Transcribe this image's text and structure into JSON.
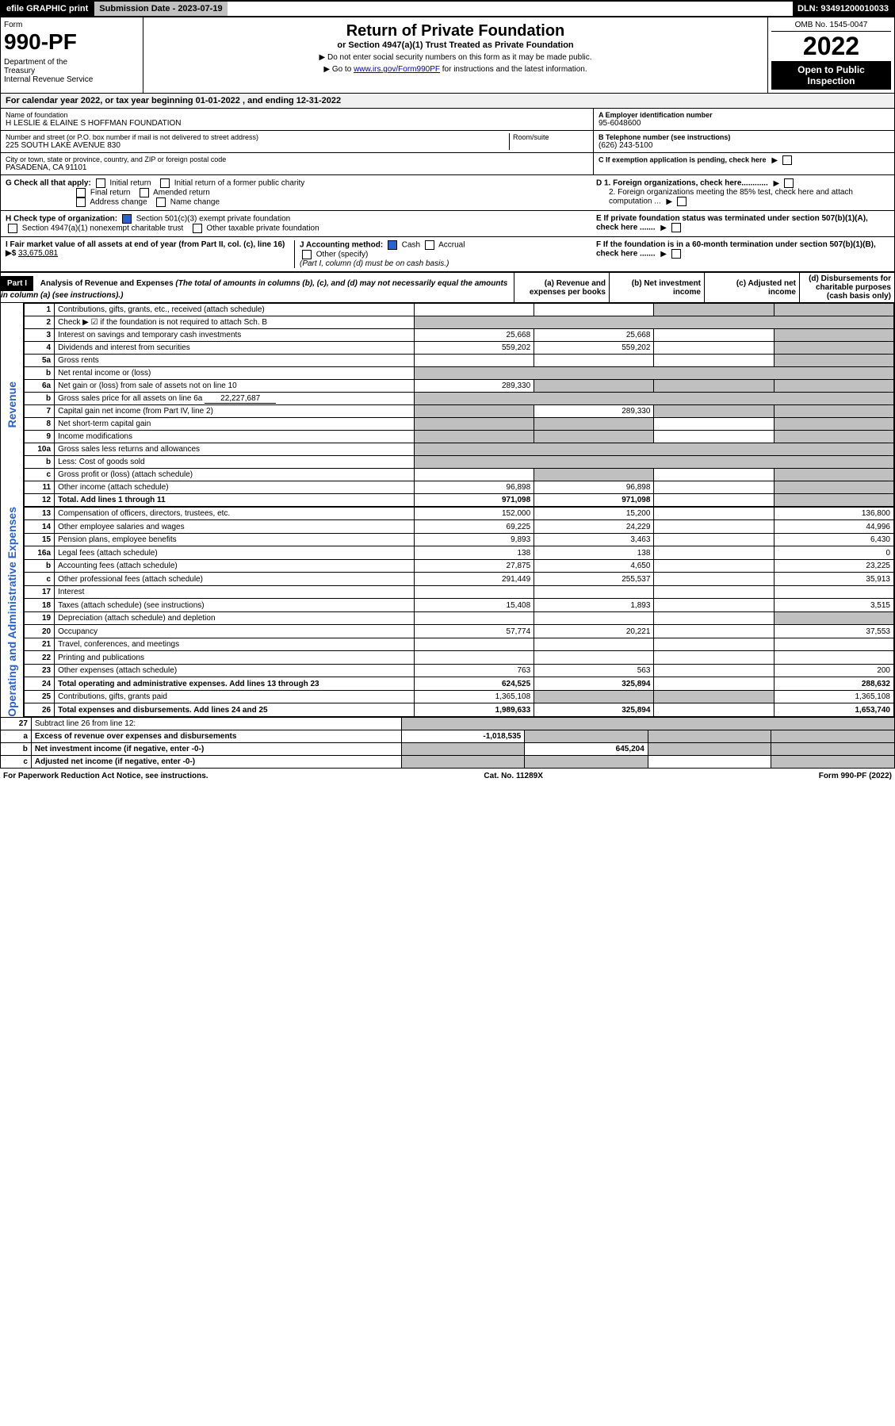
{
  "top_bar": {
    "efile": "efile GRAPHIC print",
    "submission_date_label": "Submission Date - 2023-07-19",
    "dln": "DLN: 93491200010033"
  },
  "header": {
    "form_label": "Form",
    "form_number": "990-PF",
    "dept": "Department of the Treasury\nInternal Revenue Service",
    "title": "Return of Private Foundation",
    "subtitle": "or Section 4947(a)(1) Trust Treated as Private Foundation",
    "instr1": "▶ Do not enter social security numbers on this form as it may be made public.",
    "instr2_pre": "▶ Go to ",
    "instr2_link": "www.irs.gov/Form990PF",
    "instr2_post": " for instructions and the latest information.",
    "omb": "OMB No. 1545-0047",
    "year": "2022",
    "open_public": "Open to Public Inspection"
  },
  "cal_year": "For calendar year 2022, or tax year beginning 01-01-2022                    , and ending 12-31-2022",
  "entity": {
    "name_lbl": "Name of foundation",
    "name_val": "H LESLIE & ELAINE S HOFFMAN FOUNDATION",
    "addr_lbl": "Number and street (or P.O. box number if mail is not delivered to street address)",
    "addr_val": "225 SOUTH LAKE AVENUE 830",
    "room_lbl": "Room/suite",
    "city_lbl": "City or town, state or province, country, and ZIP or foreign postal code",
    "city_val": "PASADENA, CA  91101",
    "a_lbl": "A Employer identification number",
    "a_val": "95-6048600",
    "b_lbl": "B Telephone number (see instructions)",
    "b_val": "(626) 243-5100",
    "c_lbl": "C If exemption application is pending, check here"
  },
  "checks": {
    "g_lbl": "G Check all that apply:",
    "g_items": [
      "Initial return",
      "Initial return of a former public charity",
      "Final return",
      "Amended return",
      "Address change",
      "Name change"
    ],
    "h_lbl": "H Check type of organization:",
    "h_501c3": "Section 501(c)(3) exempt private foundation",
    "h_4947": "Section 4947(a)(1) nonexempt charitable trust",
    "h_other": "Other taxable private foundation",
    "i_lbl": "I Fair market value of all assets at end of year (from Part II, col. (c), line 16) ▶$",
    "i_val": "33,675,081",
    "j_lbl": "J Accounting method:",
    "j_cash": "Cash",
    "j_accrual": "Accrual",
    "j_other": "Other (specify)",
    "j_note": "(Part I, column (d) must be on cash basis.)",
    "d1": "D 1. Foreign organizations, check here............",
    "d2": "2. Foreign organizations meeting the 85% test, check here and attach computation ...",
    "e": "E If private foundation status was terminated under section 507(b)(1)(A), check here .......",
    "f": "F If the foundation is in a 60-month termination under section 507(b)(1)(B), check here ......."
  },
  "part1": {
    "badge": "Part I",
    "title": "Analysis of Revenue and Expenses",
    "note": "(The total of amounts in columns (b), (c), and (d) may not necessarily equal the amounts in column (a) (see instructions).)",
    "col_a": "(a) Revenue and expenses per books",
    "col_b": "(b) Net investment income",
    "col_c": "(c) Adjusted net income",
    "col_d": "(d) Disbursements for charitable purposes (cash basis only)"
  },
  "side_labels": {
    "revenue": "Revenue",
    "expenses": "Operating and Administrative Expenses"
  },
  "rows": [
    {
      "n": "1",
      "d": "Contributions, gifts, grants, etc., received (attach schedule)",
      "a": "",
      "b": "",
      "c": "",
      "dd": "",
      "shade_c": true,
      "shade_d": true
    },
    {
      "n": "2",
      "d": "Check ▶ ☑ if the foundation is not required to attach Sch. B",
      "no_vals": true
    },
    {
      "n": "3",
      "d": "Interest on savings and temporary cash investments",
      "a": "25,668",
      "b": "25,668",
      "c": "",
      "dd": "",
      "shade_d": true
    },
    {
      "n": "4",
      "d": "Dividends and interest from securities",
      "a": "559,202",
      "b": "559,202",
      "c": "",
      "dd": "",
      "shade_d": true
    },
    {
      "n": "5a",
      "d": "Gross rents",
      "a": "",
      "b": "",
      "c": "",
      "dd": "",
      "shade_d": true
    },
    {
      "n": "b",
      "d": "Net rental income or (loss)",
      "inline_box": true,
      "shade_all": true
    },
    {
      "n": "6a",
      "d": "Net gain or (loss) from sale of assets not on line 10",
      "a": "289,330",
      "b": "",
      "c": "",
      "dd": "",
      "shade_b": true,
      "shade_c": true,
      "shade_d": true
    },
    {
      "n": "b",
      "d": "Gross sales price for all assets on line 6a",
      "inline_val": "22,227,687",
      "shade_all": true
    },
    {
      "n": "7",
      "d": "Capital gain net income (from Part IV, line 2)",
      "a": "",
      "b": "289,330",
      "c": "",
      "dd": "",
      "shade_a": true,
      "shade_c": true,
      "shade_d": true
    },
    {
      "n": "8",
      "d": "Net short-term capital gain",
      "a": "",
      "b": "",
      "c": "",
      "dd": "",
      "shade_a": true,
      "shade_b": true,
      "shade_d": true
    },
    {
      "n": "9",
      "d": "Income modifications",
      "a": "",
      "b": "",
      "c": "",
      "dd": "",
      "shade_a": true,
      "shade_b": true,
      "shade_d": true
    },
    {
      "n": "10a",
      "d": "Gross sales less returns and allowances",
      "inline_box": true,
      "shade_all": true
    },
    {
      "n": "b",
      "d": "Less: Cost of goods sold",
      "inline_box": true,
      "shade_all": true
    },
    {
      "n": "c",
      "d": "Gross profit or (loss) (attach schedule)",
      "a": "",
      "b": "",
      "c": "",
      "dd": "",
      "shade_b": true,
      "shade_d": true
    },
    {
      "n": "11",
      "d": "Other income (attach schedule)",
      "a": "96,898",
      "b": "96,898",
      "c": "",
      "dd": "",
      "shade_d": true
    },
    {
      "n": "12",
      "d": "Total. Add lines 1 through 11",
      "a": "971,098",
      "b": "971,098",
      "c": "",
      "dd": "",
      "bold": true,
      "shade_d": true
    }
  ],
  "exp_rows": [
    {
      "n": "13",
      "d": "Compensation of officers, directors, trustees, etc.",
      "a": "152,000",
      "b": "15,200",
      "c": "",
      "dd": "136,800"
    },
    {
      "n": "14",
      "d": "Other employee salaries and wages",
      "a": "69,225",
      "b": "24,229",
      "c": "",
      "dd": "44,996"
    },
    {
      "n": "15",
      "d": "Pension plans, employee benefits",
      "a": "9,893",
      "b": "3,463",
      "c": "",
      "dd": "6,430"
    },
    {
      "n": "16a",
      "d": "Legal fees (attach schedule)",
      "a": "138",
      "b": "138",
      "c": "",
      "dd": "0"
    },
    {
      "n": "b",
      "d": "Accounting fees (attach schedule)",
      "a": "27,875",
      "b": "4,650",
      "c": "",
      "dd": "23,225"
    },
    {
      "n": "c",
      "d": "Other professional fees (attach schedule)",
      "a": "291,449",
      "b": "255,537",
      "c": "",
      "dd": "35,913"
    },
    {
      "n": "17",
      "d": "Interest",
      "a": "",
      "b": "",
      "c": "",
      "dd": ""
    },
    {
      "n": "18",
      "d": "Taxes (attach schedule) (see instructions)",
      "a": "15,408",
      "b": "1,893",
      "c": "",
      "dd": "3,515"
    },
    {
      "n": "19",
      "d": "Depreciation (attach schedule) and depletion",
      "a": "",
      "b": "",
      "c": "",
      "dd": "",
      "shade_d": true
    },
    {
      "n": "20",
      "d": "Occupancy",
      "a": "57,774",
      "b": "20,221",
      "c": "",
      "dd": "37,553"
    },
    {
      "n": "21",
      "d": "Travel, conferences, and meetings",
      "a": "",
      "b": "",
      "c": "",
      "dd": ""
    },
    {
      "n": "22",
      "d": "Printing and publications",
      "a": "",
      "b": "",
      "c": "",
      "dd": ""
    },
    {
      "n": "23",
      "d": "Other expenses (attach schedule)",
      "a": "763",
      "b": "563",
      "c": "",
      "dd": "200"
    },
    {
      "n": "24",
      "d": "Total operating and administrative expenses. Add lines 13 through 23",
      "a": "624,525",
      "b": "325,894",
      "c": "",
      "dd": "288,632",
      "bold": true
    },
    {
      "n": "25",
      "d": "Contributions, gifts, grants paid",
      "a": "1,365,108",
      "b": "",
      "c": "",
      "dd": "1,365,108",
      "shade_b": true,
      "shade_c": true
    },
    {
      "n": "26",
      "d": "Total expenses and disbursements. Add lines 24 and 25",
      "a": "1,989,633",
      "b": "325,894",
      "c": "",
      "dd": "1,653,740",
      "bold": true
    }
  ],
  "bottom_rows": [
    {
      "n": "27",
      "d": "Subtract line 26 from line 12:",
      "shade_all": true
    },
    {
      "n": "a",
      "d": "Excess of revenue over expenses and disbursements",
      "a": "-1,018,535",
      "b": "",
      "c": "",
      "dd": "",
      "bold": true,
      "shade_b": true,
      "shade_c": true,
      "shade_d": true
    },
    {
      "n": "b",
      "d": "Net investment income (if negative, enter -0-)",
      "a": "",
      "b": "645,204",
      "c": "",
      "dd": "",
      "bold": true,
      "shade_a": true,
      "shade_c": true,
      "shade_d": true
    },
    {
      "n": "c",
      "d": "Adjusted net income (if negative, enter -0-)",
      "a": "",
      "b": "",
      "c": "",
      "dd": "",
      "bold": true,
      "shade_a": true,
      "shade_b": true,
      "shade_d": true
    }
  ],
  "footer": {
    "left": "For Paperwork Reduction Act Notice, see instructions.",
    "mid": "Cat. No. 11289X",
    "right": "Form 990-PF (2022)"
  },
  "colors": {
    "link": "#0000cc",
    "checked": "#2962cc",
    "shade": "#c0c0c0"
  }
}
